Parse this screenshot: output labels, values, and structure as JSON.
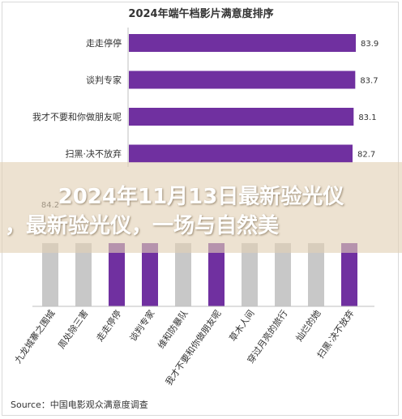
{
  "chart_data": [
    {
      "type": "bar",
      "orientation": "horizontal",
      "title": "2024年端午档影片满意度排序",
      "categories": [
        "走走停停",
        "谈判专家",
        "我才不要和你做朋友呢",
        "扫黑·决不放弃"
      ],
      "values": [
        83.9,
        83.7,
        83.1,
        82.7
      ],
      "bar_color": "#7030a0"
    },
    {
      "type": "bar",
      "orientation": "vertical",
      "categories": [
        "九龙城寨之围城",
        "周处除三害",
        "走走停停",
        "谈判专家",
        "维和防暴队",
        "我才不要和你做朋友呢",
        "草木人间",
        "穿过月亮的旅行",
        "灿烂的她",
        "扫黑·决不放弃"
      ],
      "highlight": [
        false,
        false,
        true,
        true,
        false,
        true,
        false,
        false,
        false,
        true
      ],
      "visible_value_labels": [
        "84.2",
        "",
        "",
        "",
        "",
        "",
        "",
        "",
        "",
        ""
      ],
      "highlight_color": "#7030a0",
      "base_color": "#c8c8c8"
    }
  ],
  "overlay": {
    "line1": "2024年11月13日最新验光仪",
    "line2": "，最新验光仪，一场与自然美"
  },
  "source_text": "Source：中国电影观众满意度调查"
}
